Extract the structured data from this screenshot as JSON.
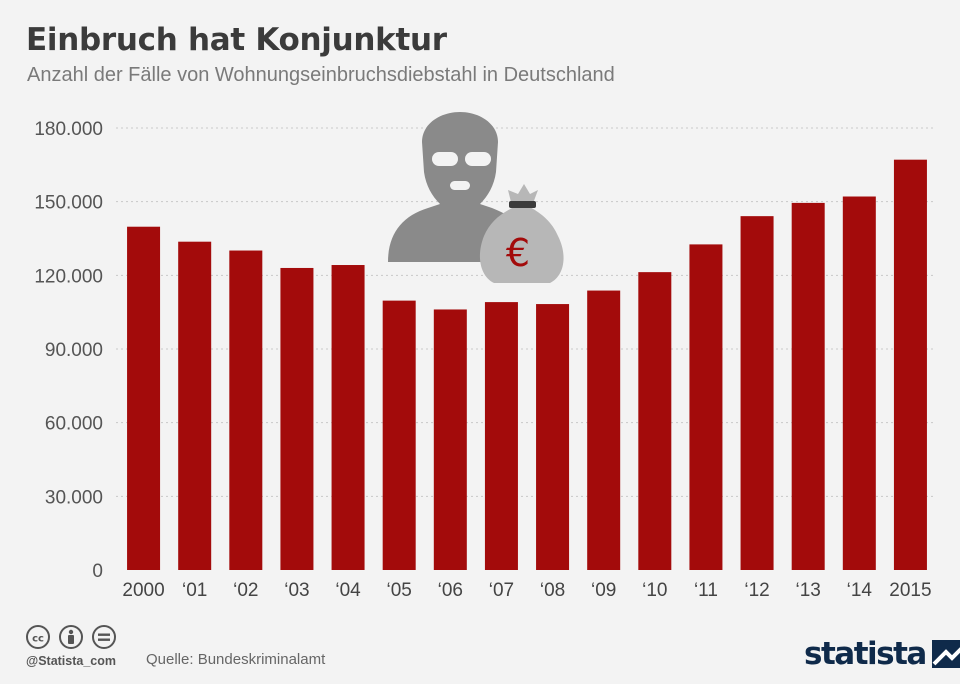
{
  "header": {
    "title": "Einbruch hat Konjunktur",
    "subtitle": "Anzahl der Fälle von Wohnungseinbruchsdiebstahl in Deutschland"
  },
  "chart_data": {
    "type": "bar",
    "categories": [
      "2000",
      "‘01",
      "‘02",
      "‘03",
      "‘04",
      "‘05",
      "‘06",
      "‘07",
      "‘08",
      "‘09",
      "‘10",
      "‘11",
      "‘12",
      "‘13",
      "‘14",
      "2015"
    ],
    "values": [
      139800,
      133700,
      130100,
      123000,
      124200,
      109700,
      106100,
      109100,
      108300,
      113800,
      121300,
      132600,
      144100,
      149500,
      152100,
      167100
    ],
    "ylim": [
      0,
      180000
    ],
    "yticks": [
      0,
      30000,
      60000,
      90000,
      120000,
      150000,
      180000
    ],
    "ytick_labels": [
      "0",
      "30.000",
      "60.000",
      "90.000",
      "120.000",
      "150.000",
      "180.000"
    ],
    "grid": true,
    "bar_color": "#a30b0b"
  },
  "illustration": {
    "icons": [
      "burglar-mask-icon",
      "money-bag-icon"
    ],
    "money_bag_symbol": "€"
  },
  "footer": {
    "license_icons": [
      "cc-icon",
      "attribution-icon",
      "no-derivatives-icon"
    ],
    "handle": "@Statista_com",
    "source": "Quelle: Bundeskriminalamt",
    "logo_text": "statista"
  },
  "colors": {
    "background": "#f3f3f3",
    "title": "#3b3b3b",
    "axis_text": "#555555",
    "brand": "#0f2a4a"
  }
}
